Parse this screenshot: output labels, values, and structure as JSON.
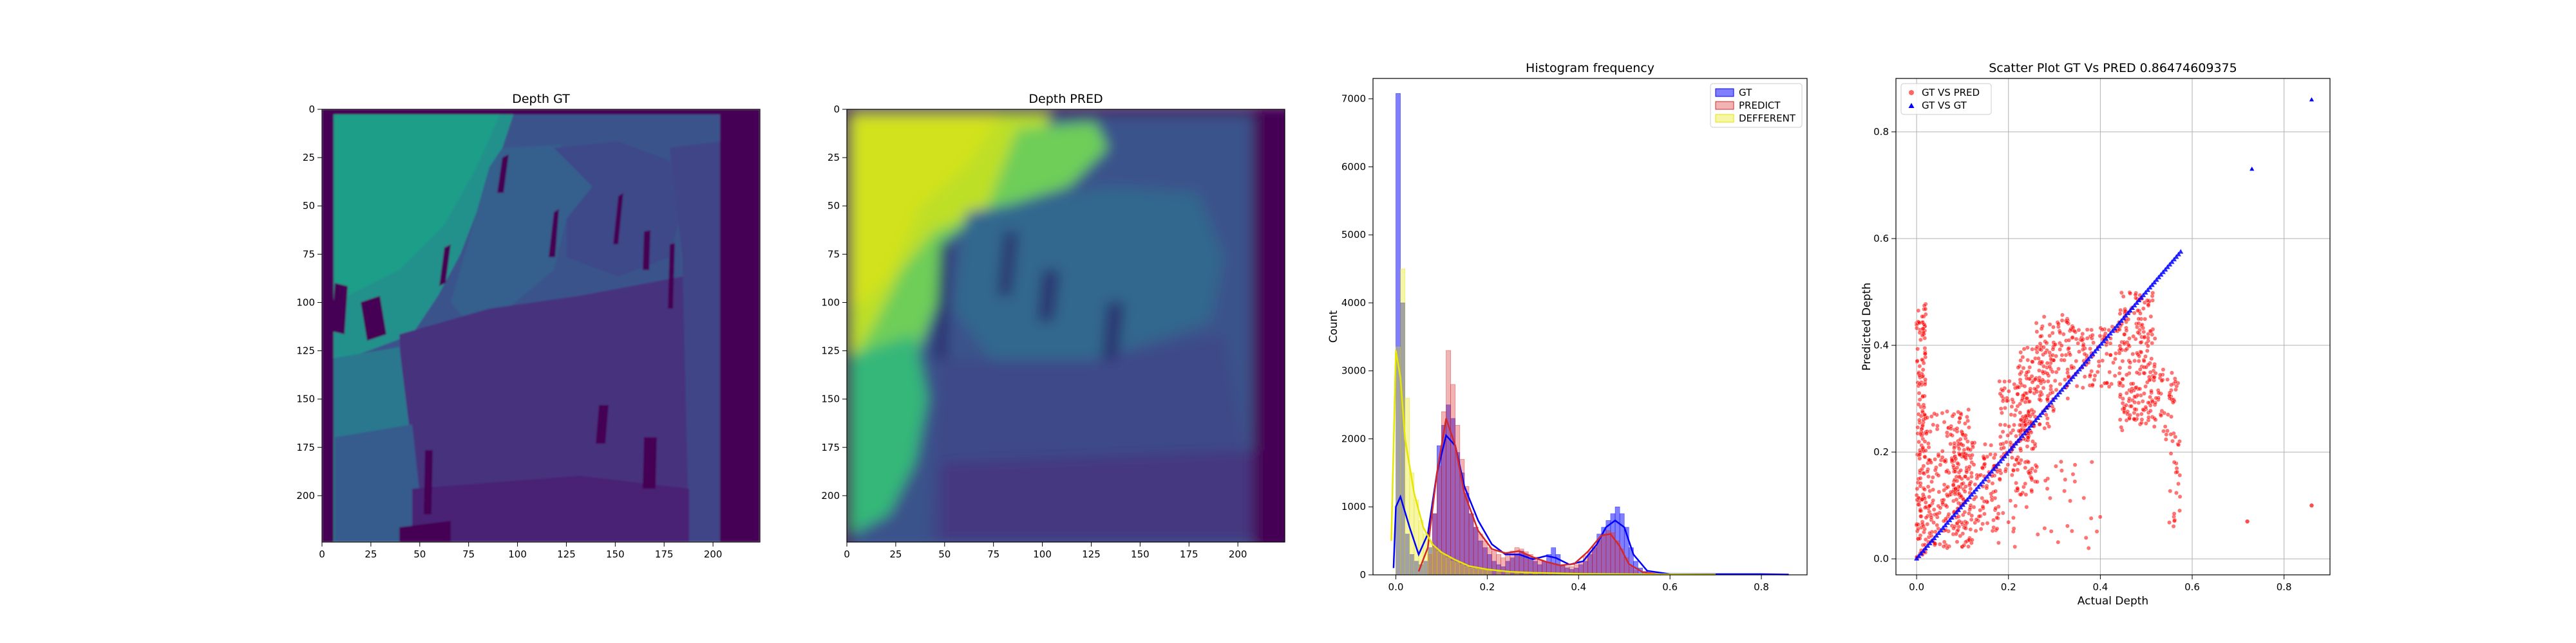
{
  "chart_data": [
    {
      "type": "heatmap",
      "title": "Depth GT",
      "xlim": [
        0,
        224
      ],
      "ylim": [
        224,
        0
      ],
      "x_ticks": [
        0,
        25,
        50,
        75,
        100,
        125,
        150,
        175,
        200
      ],
      "y_ticks": [
        0,
        25,
        50,
        75,
        100,
        125,
        150,
        175,
        200
      ],
      "colormap": "viridis",
      "regions": [
        {
          "name": "wall-upper-left",
          "level": 0.55
        },
        {
          "name": "mid-structure",
          "level": 0.28
        },
        {
          "name": "right-edge",
          "level": 0.02
        },
        {
          "name": "lower-block",
          "level": 0.18
        },
        {
          "name": "left-strip",
          "level": 0.45
        }
      ]
    },
    {
      "type": "heatmap",
      "title": "Depth PRED",
      "xlim": [
        0,
        224
      ],
      "ylim": [
        224,
        0
      ],
      "x_ticks": [
        0,
        25,
        50,
        75,
        100,
        125,
        150,
        175,
        200
      ],
      "y_ticks": [
        0,
        25,
        50,
        75,
        100,
        125,
        150,
        175,
        200
      ],
      "colormap": "viridis",
      "regions": [
        {
          "name": "bright-upper-left",
          "level": 0.9
        },
        {
          "name": "mid-structure",
          "level": 0.35
        },
        {
          "name": "right-edge",
          "level": 0.05
        },
        {
          "name": "lower-block",
          "level": 0.25
        }
      ]
    },
    {
      "type": "bar",
      "title": "Histogram frequency",
      "xlabel": "",
      "ylabel": "Count",
      "xlim": [
        -0.05,
        0.9
      ],
      "ylim": [
        0,
        7300
      ],
      "x_ticks": [
        0.0,
        0.2,
        0.4,
        0.6,
        0.8
      ],
      "x_tick_labels": [
        "0.0",
        "0.2",
        "0.4",
        "0.6",
        "0.8"
      ],
      "y_ticks": [
        0,
        1000,
        2000,
        3000,
        4000,
        5000,
        6000,
        7000
      ],
      "grid": false,
      "legend": "top-right",
      "bin_width": 0.01,
      "series": [
        {
          "name": "GT",
          "color": "#0000ff",
          "bins": [
            [
              0.0,
              7080
            ],
            [
              0.01,
              4000
            ],
            [
              0.02,
              600
            ],
            [
              0.03,
              300
            ],
            [
              0.04,
              200
            ],
            [
              0.05,
              150
            ],
            [
              0.06,
              200
            ],
            [
              0.07,
              400
            ],
            [
              0.08,
              900
            ],
            [
              0.09,
              1900
            ],
            [
              0.1,
              2200
            ],
            [
              0.11,
              2500
            ],
            [
              0.12,
              2300
            ],
            [
              0.13,
              1800
            ],
            [
              0.14,
              1500
            ],
            [
              0.15,
              1200
            ],
            [
              0.16,
              900
            ],
            [
              0.17,
              700
            ],
            [
              0.18,
              500
            ],
            [
              0.19,
              400
            ],
            [
              0.2,
              300
            ],
            [
              0.21,
              200
            ],
            [
              0.22,
              150
            ],
            [
              0.23,
              120
            ],
            [
              0.24,
              200
            ],
            [
              0.25,
              250
            ],
            [
              0.26,
              300
            ],
            [
              0.27,
              350
            ],
            [
              0.28,
              300
            ],
            [
              0.29,
              250
            ],
            [
              0.3,
              200
            ],
            [
              0.31,
              150
            ],
            [
              0.32,
              200
            ],
            [
              0.33,
              300
            ],
            [
              0.34,
              400
            ],
            [
              0.35,
              300
            ],
            [
              0.36,
              150
            ],
            [
              0.37,
              100
            ],
            [
              0.38,
              80
            ],
            [
              0.39,
              100
            ],
            [
              0.4,
              150
            ],
            [
              0.41,
              200
            ],
            [
              0.42,
              300
            ],
            [
              0.43,
              400
            ],
            [
              0.44,
              600
            ],
            [
              0.45,
              700
            ],
            [
              0.46,
              800
            ],
            [
              0.47,
              900
            ],
            [
              0.48,
              1000
            ],
            [
              0.49,
              900
            ],
            [
              0.5,
              700
            ],
            [
              0.51,
              400
            ],
            [
              0.52,
              200
            ],
            [
              0.53,
              100
            ],
            [
              0.54,
              50
            ]
          ],
          "kde": [
            [
              -0.005,
              100
            ],
            [
              0.0,
              1000
            ],
            [
              0.01,
              1150
            ],
            [
              0.03,
              700
            ],
            [
              0.05,
              300
            ],
            [
              0.07,
              600
            ],
            [
              0.09,
              1500
            ],
            [
              0.11,
              2050
            ],
            [
              0.13,
              1900
            ],
            [
              0.15,
              1300
            ],
            [
              0.18,
              800
            ],
            [
              0.21,
              450
            ],
            [
              0.24,
              300
            ],
            [
              0.27,
              300
            ],
            [
              0.3,
              230
            ],
            [
              0.33,
              280
            ],
            [
              0.35,
              250
            ],
            [
              0.38,
              150
            ],
            [
              0.41,
              200
            ],
            [
              0.44,
              450
            ],
            [
              0.46,
              700
            ],
            [
              0.48,
              800
            ],
            [
              0.5,
              700
            ],
            [
              0.52,
              300
            ],
            [
              0.55,
              60
            ],
            [
              0.6,
              10
            ],
            [
              0.8,
              10
            ],
            [
              0.86,
              5
            ]
          ]
        },
        {
          "name": "PREDICT",
          "color": "#d62728",
          "bins": [
            [
              0.07,
              300
            ],
            [
              0.08,
              900
            ],
            [
              0.09,
              1600
            ],
            [
              0.1,
              2400
            ],
            [
              0.11,
              3300
            ],
            [
              0.12,
              2800
            ],
            [
              0.13,
              2200
            ],
            [
              0.14,
              1700
            ],
            [
              0.15,
              1300
            ],
            [
              0.16,
              900
            ],
            [
              0.17,
              700
            ],
            [
              0.18,
              600
            ],
            [
              0.19,
              500
            ],
            [
              0.2,
              400
            ],
            [
              0.21,
              350
            ],
            [
              0.22,
              300
            ],
            [
              0.23,
              250
            ],
            [
              0.24,
              300
            ],
            [
              0.25,
              350
            ],
            [
              0.26,
              400
            ],
            [
              0.27,
              380
            ],
            [
              0.28,
              340
            ],
            [
              0.29,
              300
            ],
            [
              0.3,
              260
            ],
            [
              0.31,
              220
            ],
            [
              0.32,
              200
            ],
            [
              0.33,
              180
            ],
            [
              0.34,
              160
            ],
            [
              0.35,
              140
            ],
            [
              0.36,
              130
            ],
            [
              0.37,
              120
            ],
            [
              0.38,
              120
            ],
            [
              0.39,
              150
            ],
            [
              0.4,
              200
            ],
            [
              0.41,
              280
            ],
            [
              0.42,
              350
            ],
            [
              0.43,
              420
            ],
            [
              0.44,
              500
            ],
            [
              0.45,
              600
            ],
            [
              0.46,
              650
            ],
            [
              0.47,
              620
            ],
            [
              0.48,
              500
            ],
            [
              0.49,
              380
            ],
            [
              0.5,
              250
            ],
            [
              0.51,
              120
            ],
            [
              0.52,
              60
            ]
          ],
          "kde": [
            [
              0.05,
              50
            ],
            [
              0.07,
              400
            ],
            [
              0.09,
              1500
            ],
            [
              0.11,
              2300
            ],
            [
              0.13,
              1900
            ],
            [
              0.15,
              1200
            ],
            [
              0.18,
              650
            ],
            [
              0.21,
              380
            ],
            [
              0.24,
              320
            ],
            [
              0.27,
              350
            ],
            [
              0.3,
              260
            ],
            [
              0.33,
              190
            ],
            [
              0.36,
              140
            ],
            [
              0.39,
              160
            ],
            [
              0.42,
              340
            ],
            [
              0.45,
              580
            ],
            [
              0.47,
              600
            ],
            [
              0.49,
              420
            ],
            [
              0.51,
              160
            ],
            [
              0.54,
              40
            ],
            [
              0.58,
              5
            ]
          ]
        },
        {
          "name": "DEFFERENT",
          "color": "#e6e600",
          "bins": [
            [
              0.0,
              3350
            ],
            [
              0.01,
              4500
            ],
            [
              0.02,
              2600
            ],
            [
              0.03,
              1500
            ],
            [
              0.04,
              1100
            ],
            [
              0.05,
              800
            ],
            [
              0.06,
              600
            ],
            [
              0.07,
              500
            ],
            [
              0.08,
              400
            ],
            [
              0.09,
              350
            ],
            [
              0.1,
              300
            ],
            [
              0.11,
              250
            ],
            [
              0.12,
              200
            ],
            [
              0.13,
              180
            ],
            [
              0.14,
              150
            ],
            [
              0.15,
              120
            ],
            [
              0.16,
              100
            ],
            [
              0.17,
              90
            ],
            [
              0.18,
              80
            ],
            [
              0.19,
              70
            ],
            [
              0.2,
              60
            ],
            [
              0.22,
              50
            ],
            [
              0.24,
              40
            ],
            [
              0.26,
              35
            ],
            [
              0.28,
              30
            ],
            [
              0.3,
              25
            ]
          ],
          "kde": [
            [
              -0.01,
              500
            ],
            [
              0.0,
              3300
            ],
            [
              0.01,
              2900
            ],
            [
              0.02,
              2000
            ],
            [
              0.04,
              1200
            ],
            [
              0.06,
              700
            ],
            [
              0.08,
              450
            ],
            [
              0.1,
              330
            ],
            [
              0.13,
              220
            ],
            [
              0.16,
              130
            ],
            [
              0.2,
              80
            ],
            [
              0.25,
              45
            ],
            [
              0.3,
              30
            ],
            [
              0.4,
              15
            ],
            [
              0.5,
              10
            ],
            [
              0.7,
              5
            ]
          ]
        }
      ]
    },
    {
      "type": "scatter",
      "title": "Scatter Plot GT Vs PRED 0.86474609375",
      "xlabel": "Actual Depth",
      "ylabel": "Predicted Depth",
      "xlim": [
        -0.045,
        0.9
      ],
      "ylim": [
        -0.03,
        0.9
      ],
      "x_ticks": [
        0.0,
        0.2,
        0.4,
        0.6,
        0.8
      ],
      "x_tick_labels": [
        "0.0",
        "0.2",
        "0.4",
        "0.6",
        "0.8"
      ],
      "y_ticks": [
        0.0,
        0.2,
        0.4,
        0.6,
        0.8
      ],
      "y_tick_labels": [
        "0.0",
        "0.2",
        "0.4",
        "0.6",
        "0.8"
      ],
      "grid": true,
      "legend": "top-left",
      "series": [
        {
          "name": "GT VS PRED",
          "color": "#ff0000",
          "marker": "circle",
          "clusters": [
            {
              "x_range": [
                0.0,
                0.02
              ],
              "y_range": [
                0.0,
                0.48
              ],
              "count": 170
            },
            {
              "x_range": [
                0.02,
                0.12
              ],
              "y_range": [
                0.02,
                0.28
              ],
              "count": 240
            },
            {
              "x_range": [
                0.08,
                0.18
              ],
              "y_range": [
                0.05,
                0.22
              ],
              "count": 120
            },
            {
              "x_range": [
                0.18,
                0.26
              ],
              "y_range": [
                0.12,
                0.34
              ],
              "count": 150
            },
            {
              "x_range": [
                0.22,
                0.3
              ],
              "y_range": [
                0.22,
                0.4
              ],
              "count": 120
            },
            {
              "x_range": [
                0.26,
                0.34
              ],
              "y_range": [
                0.3,
                0.46
              ],
              "count": 80
            },
            {
              "x_range": [
                0.33,
                0.44
              ],
              "y_range": [
                0.32,
                0.44
              ],
              "count": 90
            },
            {
              "x_range": [
                0.44,
                0.52
              ],
              "y_range": [
                0.24,
                0.5
              ],
              "count": 220
            },
            {
              "x_range": [
                0.52,
                0.56
              ],
              "y_range": [
                0.22,
                0.36
              ],
              "count": 40
            },
            {
              "x_range": [
                0.55,
                0.58
              ],
              "y_range": [
                0.05,
                0.34
              ],
              "count": 30
            },
            {
              "x_range": [
                0.08,
                0.4
              ],
              "y_range": [
                0.02,
                0.2
              ],
              "count": 60
            }
          ],
          "outliers": [
            [
              0.72,
              0.07
            ],
            [
              0.86,
              0.1
            ]
          ]
        },
        {
          "name": "GT VS GT",
          "color": "#0000ff",
          "marker": "triangle",
          "line_range": [
            0.0,
            0.575
          ],
          "outliers": [
            [
              0.73,
              0.73
            ],
            [
              0.86,
              0.86
            ]
          ]
        }
      ]
    }
  ]
}
